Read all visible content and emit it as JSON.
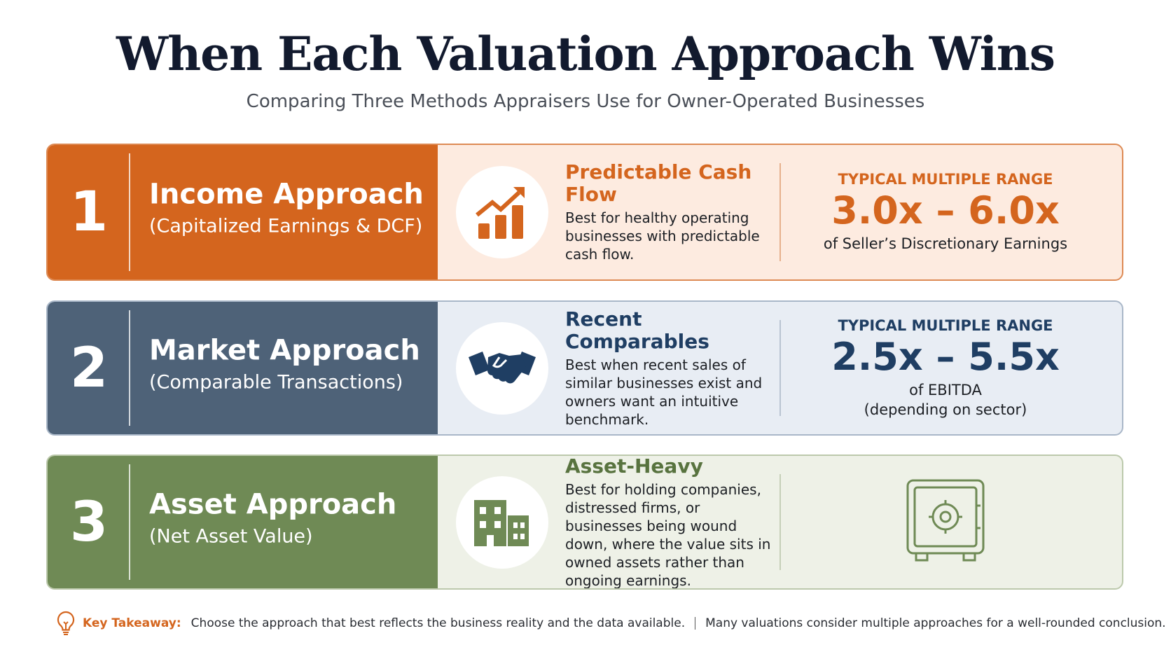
{
  "header": {
    "title": "When Each Valuation Approach Wins",
    "subtitle": "Comparing Three Methods Appraisers Use for Owner-Operated Businesses"
  },
  "approaches": [
    {
      "number": "1",
      "name": "Income Approach",
      "method": "(Capitalized Earnings & DCF)",
      "heading": "Predictable Cash Flow",
      "description": "Best for healthy operating businesses with predictable cash flow.",
      "range_label": "TYPICAL MULTIPLE RANGE",
      "range": "3.0x – 6.0x",
      "range_note": [
        "of Seller’s Discretionary Earnings"
      ]
    },
    {
      "number": "2",
      "name": "Market Approach",
      "method": "(Comparable Transactions)",
      "heading": "Recent Comparables",
      "description": "Best when recent sales of similar businesses exist and owners want an intuitive benchmark.",
      "range_label": "TYPICAL MULTIPLE RANGE",
      "range": "2.5x – 5.5x",
      "range_note": [
        "of EBITDA",
        "(depending on sector)"
      ]
    },
    {
      "number": "3",
      "name": "Asset Approach",
      "method": "(Net Asset Value)",
      "heading": "Asset-Heavy",
      "description": "Best for holding companies, distressed firms, or businesses being wound down, where the value sits in owned assets rather than ongoing earnings."
    }
  ],
  "footer": {
    "label": "Key Takeaway:",
    "text": "Choose the approach that best reflects the business reality and the data available.",
    "text2": "Many valuations consider multiple approaches for a well-rounded conclusion."
  }
}
